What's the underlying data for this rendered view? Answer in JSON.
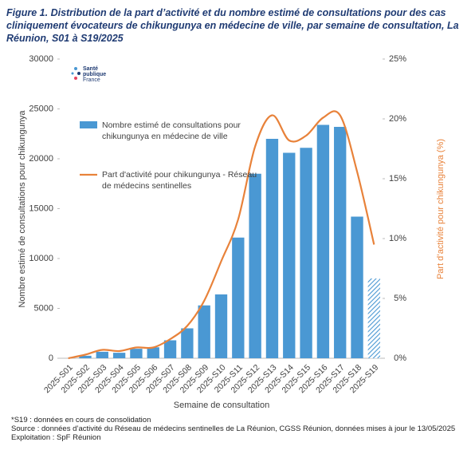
{
  "chart_data": {
    "type": "bar-line",
    "title": "Figure 1. Distribution de la part d’activité et du nombre estimé de consultations pour des cas cliniquement évocateurs de chikungunya en médecine de ville, par semaine de consultation, La Réunion, S01 à S19/2025",
    "logo": [
      "Santé",
      "publique",
      "France"
    ],
    "xlabel": "Semaine de consultation",
    "ylabel": "Nombre estimé de consultations pour chikungunya",
    "y2label": "Part d’activité pour chikungunya  (%)",
    "categories": [
      "2025-S01",
      "2025-S02",
      "2025-S03",
      "2025-S04",
      "2025-S05",
      "2025-S06",
      "2025-S07",
      "2025-S08",
      "2025-S09",
      "2025-S10",
      "2025-S11",
      "2025-S12",
      "2025-S13",
      "2025-S14",
      "2025-S15",
      "2025-S16",
      "2025-S17",
      "2025-S18",
      "2025-S19"
    ],
    "series": [
      {
        "name": "Nombre estimé de consultations pour chikungunya en médecine de ville",
        "color": "#4a98d3",
        "type": "bar",
        "hatched": [
          18
        ],
        "values": [
          0,
          250,
          650,
          550,
          950,
          1100,
          1800,
          3000,
          5300,
          6400,
          12100,
          18500,
          22000,
          20600,
          21100,
          23400,
          23200,
          14200,
          8000
        ]
      },
      {
        "name": "Part d'activité pour chikungunya - Réseau de médecins sentinelles",
        "color": "#e8823a",
        "type": "line",
        "axis": "y2",
        "values": [
          0,
          0.3,
          0.7,
          0.6,
          0.9,
          0.9,
          1.6,
          2.7,
          4.8,
          8.1,
          11.6,
          17.7,
          20.3,
          18.2,
          18.6,
          20.1,
          20.3,
          15.6,
          9.5
        ]
      }
    ],
    "ylim": [
      0,
      30000
    ],
    "yticks": [
      0,
      5000,
      10000,
      15000,
      20000,
      25000,
      30000
    ],
    "y2lim": [
      0,
      25
    ],
    "y2ticks": [
      {
        "value": 0,
        "label": "0%"
      },
      {
        "value": 5,
        "label": "5%"
      },
      {
        "value": 10,
        "label": "10%"
      },
      {
        "value": 15,
        "label": "15%"
      },
      {
        "value": 20,
        "label": "20%"
      },
      {
        "value": 25,
        "label": "25%"
      }
    ],
    "notes": [
      "*S19 : données en cours de consolidation",
      "Source : données d’activité du Réseau de médecins sentinelles de La Réunion, CGSS Réunion, données mises à jour le 13/05/2025",
      "Exploitation :  SpF Réunion"
    ]
  }
}
